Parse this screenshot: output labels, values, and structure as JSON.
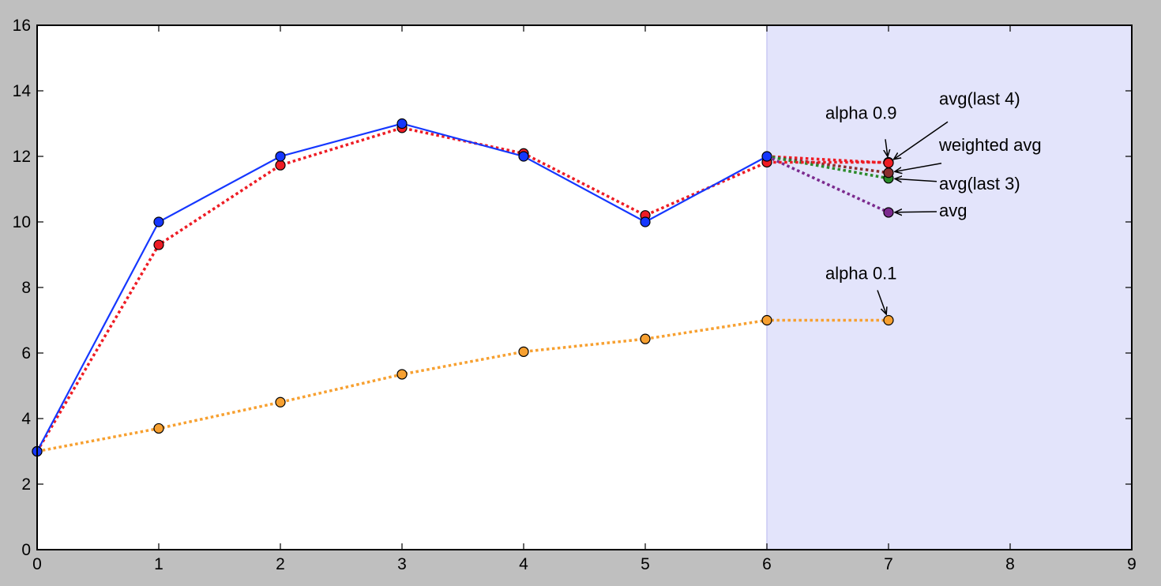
{
  "chart_data": {
    "type": "line",
    "title": "",
    "xlabel": "",
    "ylabel": "",
    "xlim": [
      0,
      9
    ],
    "ylim": [
      0,
      16
    ],
    "xticks": [
      0,
      1,
      2,
      3,
      4,
      5,
      6,
      7,
      8,
      9
    ],
    "yticks": [
      0,
      2,
      4,
      6,
      8,
      10,
      12,
      14,
      16
    ],
    "grid": false,
    "legend": "none",
    "shaded_region": {
      "x_start": 6,
      "x_end": 9,
      "color": "#e3e4fb",
      "edge": "#c9caf3"
    },
    "series": [
      {
        "id": "alpha01",
        "color": "#f7a030",
        "style": "dotted",
        "x": [
          0,
          1,
          2,
          3,
          4,
          5,
          6,
          7
        ],
        "y": [
          3.0,
          3.7,
          4.5,
          5.35,
          6.04,
          6.43,
          7.0,
          7.0
        ]
      },
      {
        "id": "alpha09",
        "color": "#ee1c24",
        "style": "dotted",
        "x": [
          0,
          1,
          2,
          3,
          4,
          5,
          6,
          7
        ],
        "y": [
          3.0,
          9.3,
          11.73,
          12.87,
          12.09,
          10.2,
          11.82,
          11.82
        ]
      },
      {
        "id": "observed",
        "color": "#1537ff",
        "style": "solid",
        "x": [
          0,
          1,
          2,
          3,
          4,
          5,
          6
        ],
        "y": [
          3,
          10,
          12,
          13,
          12,
          10,
          12
        ]
      }
    ],
    "forecasts": [
      {
        "id": "avg-last-4",
        "label": "avg(last 4)",
        "color": "#ee1c24",
        "from": [
          6,
          12
        ],
        "point": [
          7,
          11.8
        ]
      },
      {
        "id": "weighted-avg",
        "label": "weighted avg",
        "color": "#8b2e2e",
        "from": [
          6,
          12
        ],
        "point": [
          7,
          11.5
        ]
      },
      {
        "id": "avg-last-3",
        "label": "avg(last 3)",
        "color": "#2a8a2a",
        "from": [
          6,
          12
        ],
        "point": [
          7,
          11.33
        ]
      },
      {
        "id": "avg",
        "label": "avg",
        "color": "#7b2a8e",
        "from": [
          6,
          12
        ],
        "point": [
          7,
          10.29
        ]
      }
    ],
    "annotations": [
      {
        "id": "alpha09",
        "text": "alpha 0.9",
        "point": [
          7,
          11.8
        ]
      },
      {
        "id": "avg-last-4",
        "text": "avg(last 4)",
        "point": [
          7,
          11.8
        ]
      },
      {
        "id": "weighted-avg",
        "text": "weighted avg",
        "point": [
          7,
          11.5
        ]
      },
      {
        "id": "avg-last-3",
        "text": "avg(last 3)",
        "point": [
          7,
          11.33
        ]
      },
      {
        "id": "avg",
        "text": "avg",
        "point": [
          7,
          10.29
        ]
      },
      {
        "id": "alpha01",
        "text": "alpha 0.1",
        "point": [
          7,
          7.0
        ]
      }
    ]
  }
}
